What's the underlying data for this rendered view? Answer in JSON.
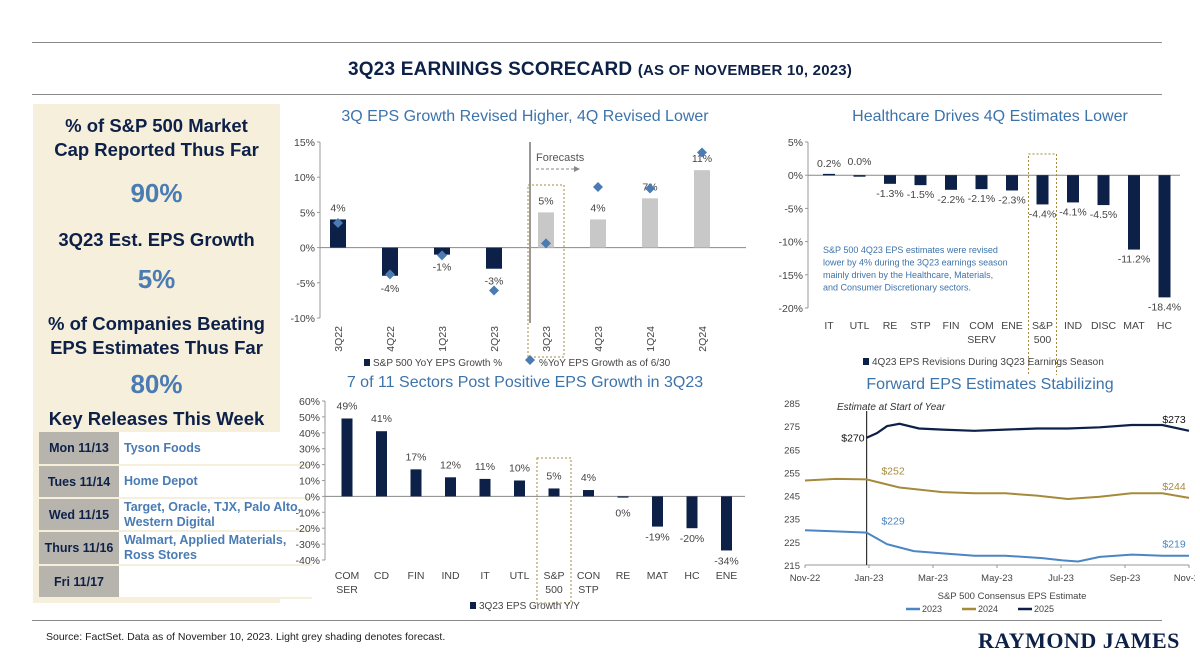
{
  "header": {
    "title": "3Q23 EARNINGS SCORECARD",
    "subtitle": "(AS OF NOVEMBER 10, 2023)"
  },
  "left_panel": {
    "metric1_label": "% of S&P 500 Market Cap Reported Thus Far",
    "metric1_value": "90%",
    "metric2_label": "3Q23 Est. EPS Growth",
    "metric2_value": "5%",
    "metric3_label": "% of Companies Beating EPS Estimates Thus Far",
    "metric3_value": "80%",
    "releases_title": "Key Releases This Week",
    "releases": [
      {
        "day": "Mon 11/13",
        "companies": "Tyson Foods"
      },
      {
        "day": "Tues 11/14",
        "companies": "Home Depot"
      },
      {
        "day": "Wed 11/15",
        "companies": "Target, Oracle, TJX, Palo Alto, Western Digital"
      },
      {
        "day": "Thurs 11/16",
        "companies": "Walmart, Applied Materials, Ross Stores"
      },
      {
        "day": "Fri 11/17",
        "companies": ""
      }
    ]
  },
  "colors": {
    "navy": "#0d2048",
    "grey": "#c8c8c8",
    "diamond": "#4a7bb3",
    "gold": "#a68a3c",
    "blue": "#4a86c5",
    "accent": "#3d73ab"
  },
  "chart_data": [
    {
      "type": "bar",
      "title": "3Q EPS Growth Revised Higher, 4Q Revised Lower",
      "categories": [
        "3Q22",
        "4Q22",
        "1Q23",
        "2Q23",
        "3Q23",
        "4Q23",
        "1Q24",
        "2Q24"
      ],
      "series": [
        {
          "name": "S&P 500 YoY EPS Growth %",
          "values": [
            4,
            -4,
            -1,
            -3,
            5,
            4,
            7,
            11
          ]
        },
        {
          "name": "%YoY EPS Growth as of 6/30",
          "values": [
            3.5,
            -3.8,
            -1.1,
            -6.1,
            0.6,
            8.6,
            8.4,
            13.5
          ]
        }
      ],
      "data_labels": [
        "4%",
        "-4%",
        "-1%",
        "-3%",
        "5%",
        "4%",
        "7%",
        "11%"
      ],
      "forecast_start": "3Q23",
      "forecast_label": "Forecasts",
      "ylim": [
        -10,
        15
      ],
      "yticks": [
        "-10%",
        "-5%",
        "0%",
        "5%",
        "10%",
        "15%"
      ]
    },
    {
      "type": "bar",
      "title": "Healthcare Drives 4Q Estimates Lower",
      "categories": [
        "IT",
        "UTL",
        "RE",
        "STP",
        "FIN",
        "COM SERV",
        "ENE",
        "S&P 500",
        "IND",
        "DISC",
        "MAT",
        "HC"
      ],
      "series": [
        {
          "name": "4Q23 EPS Revisions During 3Q23 Earnings Season",
          "values": [
            0.2,
            0.0,
            -1.3,
            -1.5,
            -2.2,
            -2.1,
            -2.3,
            -4.4,
            -4.1,
            -4.5,
            -11.2,
            -18.4
          ]
        }
      ],
      "data_labels": [
        "0.2%",
        "0.0%",
        "-1.3%",
        "-1.5%",
        "-2.2%",
        "-2.1%",
        "-2.3%",
        "-4.4%",
        "-4.1%",
        "-4.5%",
        "-11.2%",
        "-18.4%"
      ],
      "annotation": [
        "S&P 500 4Q23 EPS estimates were revised",
        "lower by 4% during the 3Q23 earnings season",
        "mainly driven by the Healthcare, Materials,",
        "and Consumer Discretionary sectors."
      ],
      "ylim": [
        -20,
        5
      ],
      "yticks": [
        "-20%",
        "-15%",
        "-10%",
        "-5%",
        "0%",
        "5%"
      ]
    },
    {
      "type": "bar",
      "title": "7 of 11 Sectors Post Positive EPS Growth in 3Q23",
      "categories": [
        "COM SER",
        "CD",
        "FIN",
        "IND",
        "IT",
        "UTL",
        "S&P 500",
        "CON STP",
        "RE",
        "MAT",
        "HC",
        "ENE"
      ],
      "series": [
        {
          "name": "3Q23 EPS Growth Y/Y",
          "values": [
            49,
            41,
            17,
            12,
            11,
            10,
            5,
            4,
            0,
            -19,
            -20,
            -34
          ]
        }
      ],
      "data_labels": [
        "49%",
        "41%",
        "17%",
        "12%",
        "11%",
        "10%",
        "5%",
        "4%",
        "0%",
        "-19%",
        "-20%",
        "-34%"
      ],
      "ylim": [
        -40,
        60
      ],
      "yticks": [
        "-40%",
        "-30%",
        "-20%",
        "-10%",
        "0%",
        "10%",
        "20%",
        "30%",
        "40%",
        "50%",
        "60%"
      ]
    },
    {
      "type": "line",
      "title": "Forward EPS Estimates Stabilizing",
      "xlabel": "S&P 500 Consensus EPS Estimate",
      "xticks": [
        "Nov-22",
        "Jan-23",
        "Mar-23",
        "May-23",
        "Jul-23",
        "Sep-23",
        "Nov-23"
      ],
      "x_start": "2022-11-01",
      "x_end": "2023-11-10",
      "marker_date": "2022-12-31",
      "marker_label": "Estimate at Start of Year",
      "ylim": [
        215,
        285
      ],
      "yticks": [
        "215",
        "225",
        "235",
        "245",
        "255",
        "265",
        "275",
        "285"
      ],
      "series": [
        {
          "name": "2023",
          "start_label": "$229",
          "end_label": "$219",
          "points": [
            [
              "2022-11-01",
              230
            ],
            [
              "2022-12-01",
              229.5
            ],
            [
              "2022-12-31",
              229
            ],
            [
              "2023-01-20",
              224
            ],
            [
              "2023-02-15",
              221
            ],
            [
              "2023-03-15",
              220
            ],
            [
              "2023-04-15",
              219
            ],
            [
              "2023-05-15",
              219
            ],
            [
              "2023-06-20",
              218
            ],
            [
              "2023-07-10",
              217
            ],
            [
              "2023-07-25",
              216.5
            ],
            [
              "2023-08-15",
              218.5
            ],
            [
              "2023-09-15",
              219.5
            ],
            [
              "2023-10-15",
              219
            ],
            [
              "2023-11-10",
              219
            ]
          ]
        },
        {
          "name": "2024",
          "start_label": "$252",
          "end_label": "$244",
          "points": [
            [
              "2022-11-01",
              251.5
            ],
            [
              "2022-12-01",
              252.2
            ],
            [
              "2022-12-31",
              252
            ],
            [
              "2023-02-01",
              248.5
            ],
            [
              "2023-03-15",
              246.5
            ],
            [
              "2023-04-15",
              246
            ],
            [
              "2023-05-15",
              246
            ],
            [
              "2023-06-15",
              245
            ],
            [
              "2023-07-15",
              243.5
            ],
            [
              "2023-08-15",
              244.5
            ],
            [
              "2023-09-15",
              246
            ],
            [
              "2023-10-15",
              246
            ],
            [
              "2023-11-10",
              244
            ]
          ]
        },
        {
          "name": "2025",
          "start_label": "$270",
          "end_label": "$273",
          "points": [
            [
              "2022-12-31",
              270
            ],
            [
              "2023-01-10",
              272
            ],
            [
              "2023-01-20",
              275
            ],
            [
              "2023-02-01",
              276
            ],
            [
              "2023-02-20",
              274
            ],
            [
              "2023-03-15",
              273.5
            ],
            [
              "2023-04-15",
              273
            ],
            [
              "2023-05-15",
              273.5
            ],
            [
              "2023-06-15",
              274
            ],
            [
              "2023-07-15",
              274
            ],
            [
              "2023-08-15",
              274.5
            ],
            [
              "2023-09-15",
              275.5
            ],
            [
              "2023-10-15",
              275.5
            ],
            [
              "2023-11-10",
              273
            ]
          ]
        }
      ]
    }
  ],
  "footer": {
    "source": "Source: FactSet. Data as of November 10, 2023. Light grey shading denotes forecast.",
    "logo": "RAYMOND JAMES"
  }
}
